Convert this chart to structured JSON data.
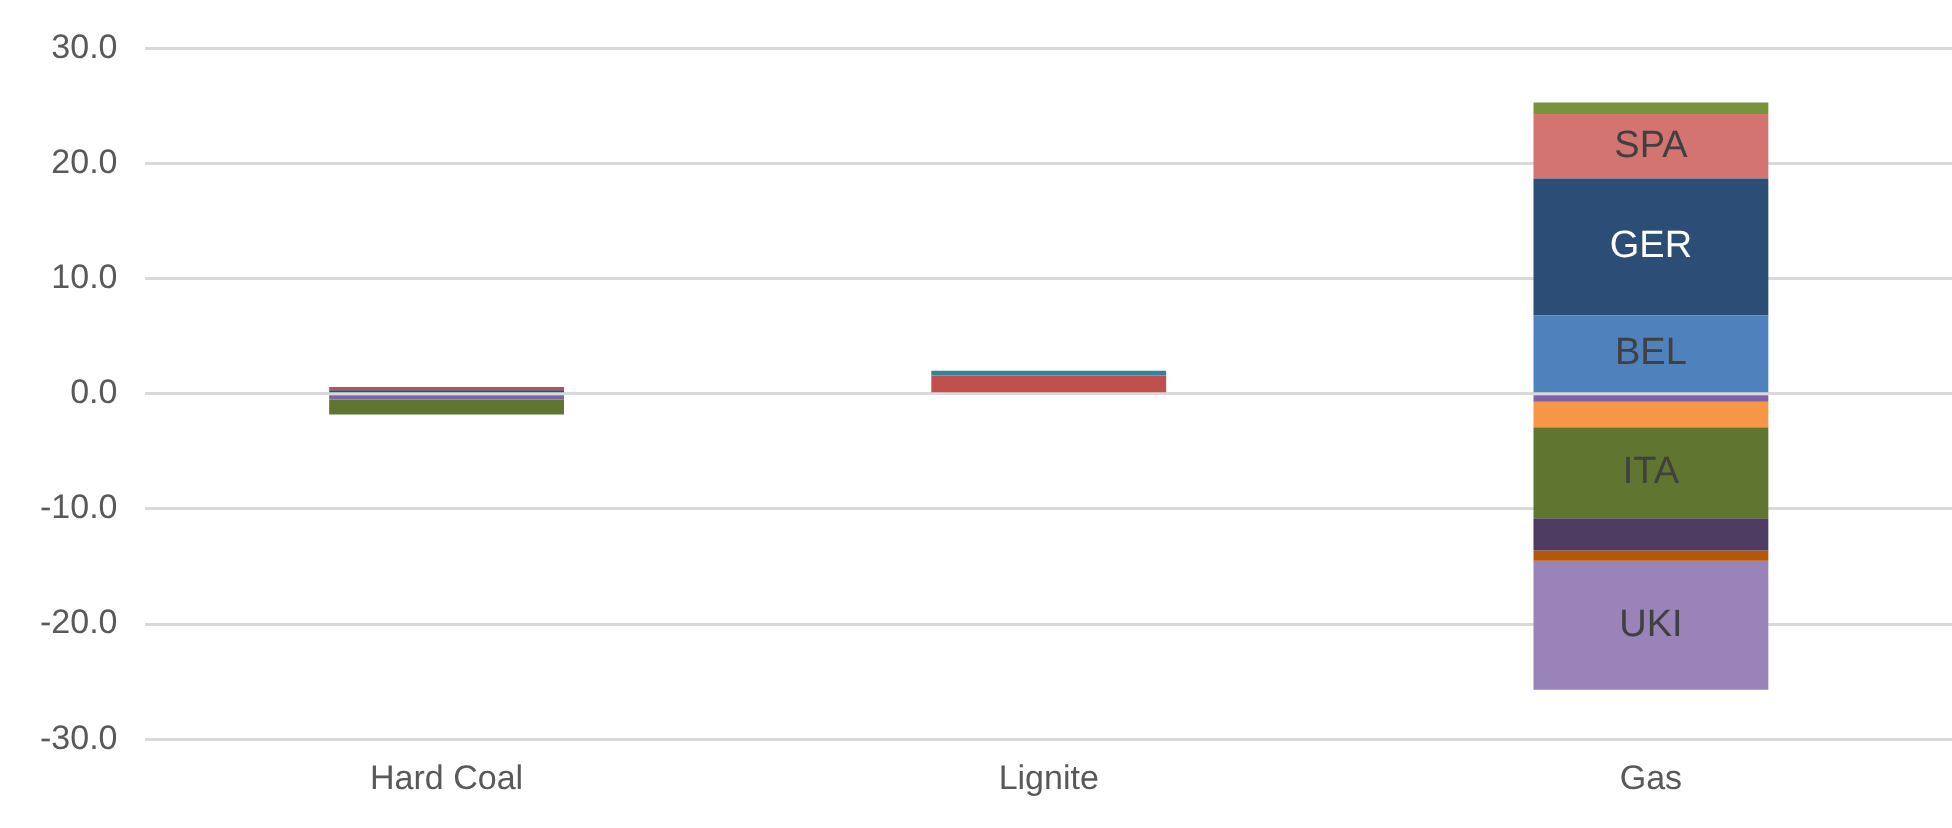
{
  "chart_data": {
    "type": "bar",
    "stacked": true,
    "categories": [
      "Hard Coal",
      "Lignite",
      "Gas"
    ],
    "series": [
      {
        "color": "#7f62a8",
        "values": [
          -0.5,
          null,
          -0.7
        ]
      },
      {
        "color": "#f79646",
        "values": [
          null,
          null,
          -2.2
        ]
      },
      {
        "name": "ITA",
        "color": "#5f7530",
        "values": [
          -1.3,
          null,
          -7.9
        ]
      },
      {
        "color": "#4d3b62",
        "values": [
          null,
          null,
          -2.8
        ]
      },
      {
        "color": "#b65708",
        "values": [
          null,
          null,
          -0.9
        ]
      },
      {
        "name": "UKI",
        "color": "#9983b8",
        "values": [
          null,
          null,
          -11.2
        ]
      },
      {
        "name": "BEL",
        "color": "#4f81bd",
        "values": [
          null,
          null,
          6.8
        ]
      },
      {
        "name": "GER",
        "color": "#2c4d75",
        "values": [
          0.3,
          null,
          11.9
        ]
      },
      {
        "color": "#c0504d",
        "values": [
          0.3,
          1.6,
          null
        ]
      },
      {
        "color": "#31849b",
        "values": [
          null,
          0.4,
          null
        ]
      },
      {
        "name": "SPA",
        "color": "#d37470",
        "values": [
          null,
          null,
          5.6
        ]
      },
      {
        "color": "#77933c",
        "values": [
          null,
          null,
          1.0
        ]
      }
    ],
    "ylim": [
      -30,
      30
    ],
    "yticks": [
      {
        "value": -30,
        "label": "-30.0"
      },
      {
        "value": -20,
        "label": "-20.0"
      },
      {
        "value": -10,
        "label": "-10.0"
      },
      {
        "value": 0,
        "label": "0.0"
      },
      {
        "value": 10,
        "label": "10.0"
      },
      {
        "value": 20,
        "label": "20.0"
      },
      {
        "value": 30,
        "label": "30.0"
      }
    ],
    "grid": "y",
    "legend": false
  }
}
